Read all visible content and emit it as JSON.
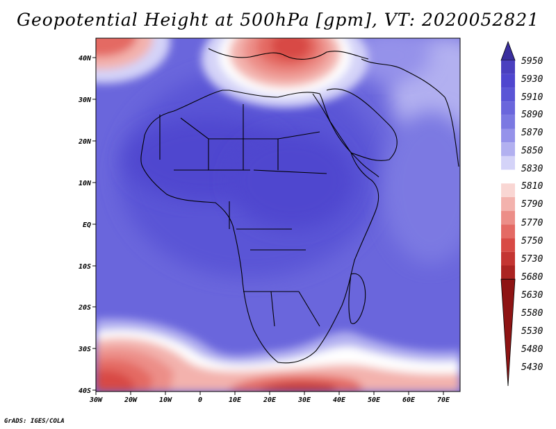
{
  "title": "Geopotential Height at 500hPa [gpm], VT: 2020052821",
  "credit": "GrADS: IGES/COLA",
  "lat_labels": [
    "40N",
    "30N",
    "20N",
    "10N",
    "EQ",
    "10S",
    "20S",
    "30S",
    "40S"
  ],
  "lon_labels": [
    "30W",
    "20W",
    "10W",
    "0",
    "10E",
    "20E",
    "30E",
    "40E",
    "50E",
    "60E",
    "70E"
  ],
  "colorbar": {
    "levels": [
      "5950",
      "5930",
      "5910",
      "5890",
      "5870",
      "5850",
      "5830",
      "5810",
      "5790",
      "5770",
      "5750",
      "5730",
      "5680",
      "5630",
      "5580",
      "5530",
      "5480",
      "5430"
    ],
    "colors": [
      "#3a2f9e",
      "#4a3fbf",
      "#4f46cf",
      "#5a55d6",
      "#6a66dc",
      "#7b79e2",
      "#9592ea",
      "#b2b0f0",
      "#d4d3f8",
      "#ffffff",
      "#f9d6d3",
      "#f3b2ad",
      "#ec8e88",
      "#e46a64",
      "#d84a45",
      "#c43532",
      "#ab2422",
      "#8e1414"
    ]
  },
  "map": {
    "lon_range": [
      -30,
      75
    ],
    "lat_range": [
      -40,
      45
    ]
  }
}
